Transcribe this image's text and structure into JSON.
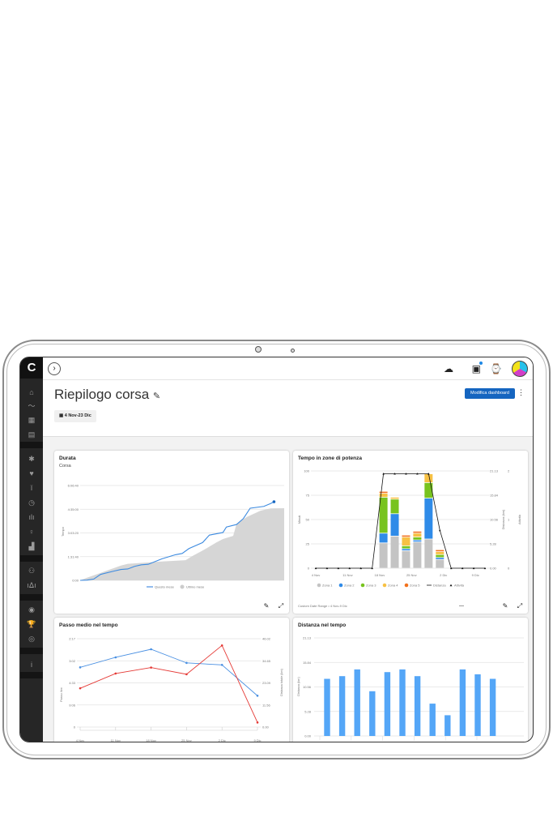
{
  "app": {
    "logo": "C",
    "page_title": "Riepilogo corsa",
    "date_range": "4 Nov-23 Dic",
    "edit_dashboard": "Modifica dashboard"
  },
  "topbar": {
    "icons": [
      "upload-cloud-icon",
      "inbox-icon",
      "watch-icon",
      "avatar"
    ]
  },
  "sidebar": {
    "icons": [
      "home-icon",
      "activity-icon",
      "calendar-icon",
      "reports-icon",
      "training-icon",
      "health-icon",
      "performance-icon",
      "stopwatch-icon",
      "records-icon",
      "insights-icon",
      "stats-icon",
      "groups-icon",
      "connections-icon",
      "challenges-icon",
      "badges-icon",
      "goals-icon",
      "info-icon"
    ]
  },
  "colors": {
    "accent": "#1565c0",
    "sidebar": "#262626",
    "blue": "#4a90e2",
    "red": "#e53935",
    "zona1": "#c4c4c4",
    "zona2": "#2f8be8",
    "zona3": "#78c31e",
    "zona4": "#f7c144",
    "zona5": "#f2711c"
  },
  "chart_data": [
    {
      "type": "area",
      "title": "Durata",
      "subtitle": "Corsa",
      "ylabel": "Tempo",
      "yticks": [
        "0:00",
        "1:31:40",
        "3:03:20",
        "4:35:00",
        "6:06:40"
      ],
      "ylim_minutes": [
        0,
        366.67
      ],
      "grid": true,
      "legend": "bottom",
      "series": [
        {
          "name": "Questo mese",
          "kind": "line",
          "points": [
            [
              0,
              0
            ],
            [
              1,
              1
            ],
            [
              2,
              5
            ],
            [
              3,
              23
            ],
            [
              5,
              36
            ],
            [
              6,
              42
            ],
            [
              7,
              44
            ],
            [
              8,
              54
            ],
            [
              9,
              60
            ],
            [
              10,
              62
            ],
            [
              12,
              83
            ],
            [
              14,
              99
            ],
            [
              15,
              104
            ],
            [
              16,
              123
            ],
            [
              18,
              146
            ],
            [
              19,
              175
            ],
            [
              21,
              185
            ],
            [
              21.5,
              206
            ],
            [
              23,
              216
            ],
            [
              24,
              239
            ],
            [
              25,
              279
            ],
            [
              27,
              286
            ],
            [
              28,
              297
            ],
            [
              28.5,
              304
            ]
          ]
        },
        {
          "name": "Ultimo mese",
          "kind": "area",
          "points": [
            [
              0,
              0
            ],
            [
              1,
              10
            ],
            [
              6,
              57
            ],
            [
              7,
              64
            ],
            [
              12,
              73
            ],
            [
              15.5,
              78
            ],
            [
              16.5,
              94
            ],
            [
              18,
              115
            ],
            [
              20,
              146
            ],
            [
              21,
              160
            ],
            [
              22.5,
              172
            ],
            [
              23,
              219
            ],
            [
              24.5,
              245
            ],
            [
              26.5,
              269
            ],
            [
              28,
              278
            ],
            [
              30,
              279
            ]
          ]
        }
      ]
    },
    {
      "type": "bar",
      "title": "Tempo in zone di potenza",
      "ylabel": "Minuti",
      "ylabel_right": "Distanza (km)",
      "ylabel_right2": "Attività",
      "yticks": [
        "0",
        "25",
        "50",
        "75",
        "100"
      ],
      "yticks_right": [
        "0.00",
        "5.28",
        "10.56",
        "15.84",
        "21.13"
      ],
      "yticks_right2": [
        "0",
        "1",
        "2"
      ],
      "xticks": [
        "4 Nov",
        "11 Nov",
        "18 Nov",
        "25 Nov",
        "2 Dic",
        "9 Dic"
      ],
      "legend": "bottom",
      "footer": "Custom Date Range • 4 Nov-9 Dic",
      "stacked_bars": {
        "positions": [
          6,
          7,
          8,
          9,
          10,
          11
        ],
        "series": [
          {
            "name": "Zona 1",
            "values": [
              26,
              33,
              18,
              27,
              30,
              9
            ]
          },
          {
            "name": "Zona 2",
            "values": [
              10,
              23,
              2,
              2,
              42,
              2
            ]
          },
          {
            "name": "Zona 3",
            "values": [
              37,
              15,
              3,
              3,
              16,
              3
            ]
          },
          {
            "name": "Zona 4",
            "values": [
              4,
              2,
              9,
              4,
              9,
              3
            ]
          },
          {
            "name": "Zona 5",
            "values": [
              2,
              0,
              2,
              2,
              0,
              2
            ]
          }
        ]
      },
      "distance_line": {
        "name": "Distanza",
        "values": [
          0,
          0,
          0,
          0,
          0,
          0,
          20.54,
          20.54,
          20.54,
          20.54,
          20.54,
          8.24,
          0,
          0,
          0,
          0
        ]
      },
      "activity_marker": {
        "name": "Attività"
      }
    },
    {
      "type": "line",
      "title": "Passo medio nel tempo",
      "ylabel": "Passo /km",
      "ylabel_right": "Distanza totale (km)",
      "yticks": [
        "0",
        "9:06",
        "4:33",
        "3:02",
        "2:17"
      ],
      "yticks_right": [
        "0.00",
        "11.56",
        "23.09",
        "34.65",
        "46.02"
      ],
      "xticks": [
        "4 Nov",
        "11 Nov",
        "18 Nov",
        "25 Nov",
        "2 Dic",
        "9 Dic"
      ],
      "series": [
        {
          "color": "#4a90e2",
          "axis": "left",
          "values": [
            "3:22",
            "2:53",
            "2:35",
            "3:08",
            "3:14",
            "6:25"
          ]
        },
        {
          "color": "#e53935",
          "axis": "right",
          "values": [
            20.2,
            27.9,
            31.0,
            27.5,
            42.5,
            2.4
          ]
        }
      ]
    },
    {
      "type": "bar",
      "title": "Distanza nel tempo",
      "ylabel": "Distanza (km)",
      "yticks": [
        "0.00",
        "5.28",
        "10.56",
        "15.84",
        "21.13"
      ],
      "ylim": [
        0,
        21.13
      ],
      "values": [
        12.31,
        12.89,
        14.34,
        9.64,
        13.76,
        14.34,
        12.89,
        6.97,
        4.47,
        14.34,
        13.29,
        12.31
      ]
    }
  ]
}
